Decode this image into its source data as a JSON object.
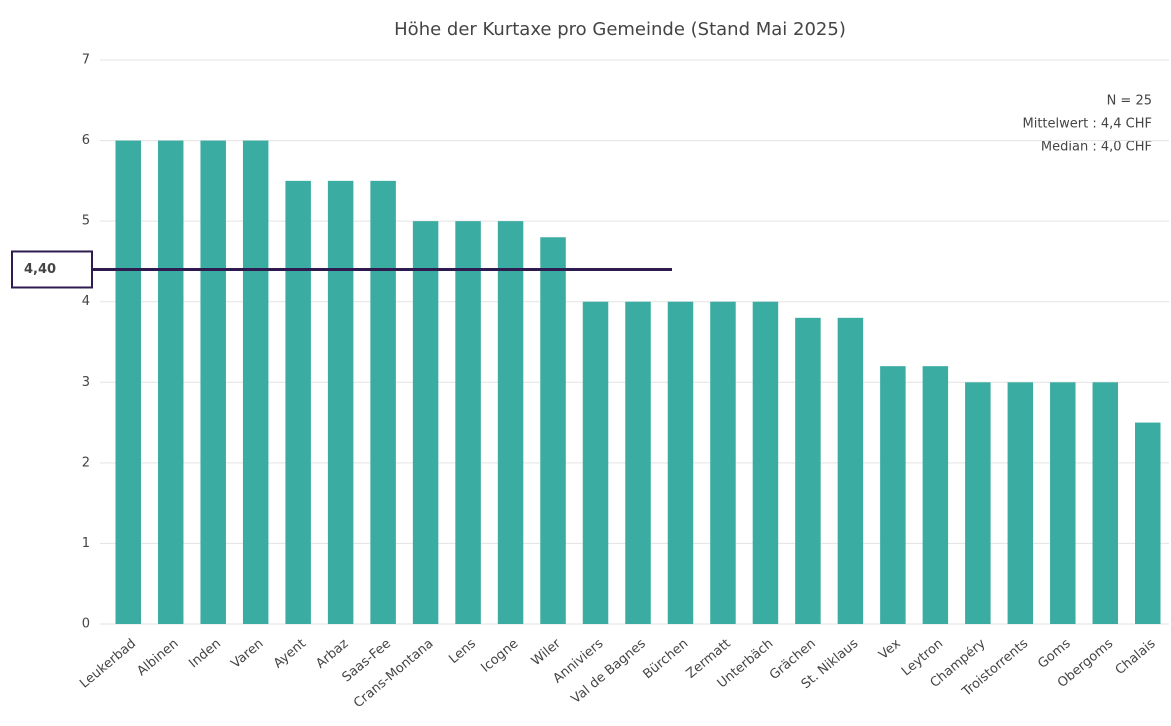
{
  "chart_data": {
    "type": "bar",
    "title": "Höhe der Kurtaxe pro Gemeinde (Stand Mai 2025)",
    "categories": [
      "Leukerbad",
      "Albinen",
      "Inden",
      "Varen",
      "Ayent",
      "Arbaz",
      "Saas-Fee",
      "Crans-Montana",
      "Lens",
      "Icogne",
      "Wiler",
      "Anniviers",
      "Val de Bagnes",
      "Bürchen",
      "Zermatt",
      "Unterbäch",
      "Grächen",
      "St. Niklaus",
      "Vex",
      "Leytron",
      "Champéry",
      "Troistorrents",
      "Goms",
      "Obergoms",
      "Chalais"
    ],
    "values": [
      6,
      6,
      6,
      6,
      5.5,
      5.5,
      5.5,
      5,
      5,
      5,
      4.8,
      4,
      4,
      4,
      4,
      4,
      3.8,
      3.8,
      3.2,
      3.2,
      3,
      3,
      3,
      3,
      2.5
    ],
    "color": "#3aaca2",
    "ylim": [
      0,
      7
    ],
    "yticks": [
      0,
      1,
      2,
      3,
      4,
      5,
      6,
      7
    ],
    "grid": true,
    "reference_line": {
      "value": 4.4,
      "label": "4,40",
      "color": "#2e1b50"
    },
    "annotations": [
      "N = 25",
      "Mittelwert : 4,4 CHF",
      "Median : 4,0 CHF"
    ]
  }
}
